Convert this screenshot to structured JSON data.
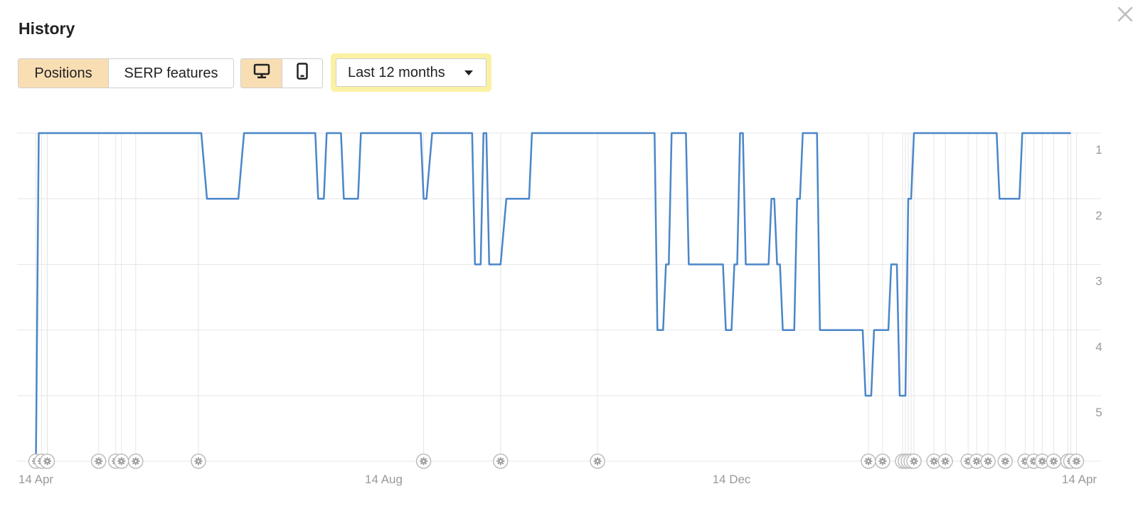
{
  "dialog": {
    "title": "History",
    "close_icon": "close-icon"
  },
  "tabs": [
    {
      "label": "Positions",
      "active": true
    },
    {
      "label": "SERP features",
      "active": false
    }
  ],
  "devices": [
    {
      "icon": "desktop-icon",
      "active": true
    },
    {
      "icon": "mobile-icon",
      "active": false
    }
  ],
  "period": {
    "label": "Last 12 months",
    "icon": "caret-down-icon"
  },
  "colors": {
    "accent": "#f9deb4",
    "highlight": "#fbf1a3",
    "line": "#4a86c8",
    "grid": "#e6e6e6",
    "muted": "#999999"
  },
  "chart_data": {
    "type": "line",
    "title": "",
    "x_axis": {
      "min": "2023-04-14",
      "max": "2024-04-21",
      "ticks": [
        "14 Apr",
        "14 Aug",
        "14 Dec",
        "14 Apr"
      ],
      "tick_dates": [
        "2023-04-14",
        "2023-08-14",
        "2023-12-14",
        "2024-04-14"
      ]
    },
    "y_axis": {
      "inverted": true,
      "ticks": [
        1,
        2,
        3,
        4,
        5
      ],
      "label": ""
    },
    "grid": true,
    "series": [
      {
        "points": [
          [
            "2023-04-14",
            null
          ],
          [
            "2023-04-15",
            1
          ],
          [
            "2023-06-11",
            1
          ],
          [
            "2023-06-13",
            2
          ],
          [
            "2023-06-24",
            2
          ],
          [
            "2023-06-26",
            1
          ],
          [
            "2023-07-21",
            1
          ],
          [
            "2023-07-22",
            2
          ],
          [
            "2023-07-24",
            2
          ],
          [
            "2023-07-25",
            1
          ],
          [
            "2023-07-30",
            1
          ],
          [
            "2023-07-31",
            2
          ],
          [
            "2023-08-05",
            2
          ],
          [
            "2023-08-06",
            1
          ],
          [
            "2023-08-27",
            1
          ],
          [
            "2023-08-28",
            2
          ],
          [
            "2023-08-29",
            2
          ],
          [
            "2023-08-31",
            1
          ],
          [
            "2023-09-14",
            1
          ],
          [
            "2023-09-15",
            3
          ],
          [
            "2023-09-17",
            3
          ],
          [
            "2023-09-18",
            1
          ],
          [
            "2023-09-19",
            1
          ],
          [
            "2023-09-20",
            3
          ],
          [
            "2023-09-24",
            3
          ],
          [
            "2023-09-26",
            2
          ],
          [
            "2023-10-04",
            2
          ],
          [
            "2023-10-05",
            1
          ],
          [
            "2023-11-17",
            1
          ],
          [
            "2023-11-18",
            4
          ],
          [
            "2023-11-20",
            4
          ],
          [
            "2023-11-21",
            3
          ],
          [
            "2023-11-22",
            3
          ],
          [
            "2023-11-23",
            1
          ],
          [
            "2023-11-28",
            1
          ],
          [
            "2023-11-29",
            3
          ],
          [
            "2023-12-11",
            3
          ],
          [
            "2023-12-12",
            4
          ],
          [
            "2023-12-14",
            4
          ],
          [
            "2023-12-15",
            3
          ],
          [
            "2023-12-16",
            3
          ],
          [
            "2023-12-17",
            1
          ],
          [
            "2023-12-18",
            1
          ],
          [
            "2023-12-19",
            3
          ],
          [
            "2023-12-27",
            3
          ],
          [
            "2023-12-28",
            2
          ],
          [
            "2023-12-29",
            2
          ],
          [
            "2023-12-30",
            3
          ],
          [
            "2023-12-31",
            3
          ],
          [
            "2024-01-01",
            4
          ],
          [
            "2024-01-05",
            4
          ],
          [
            "2024-01-06",
            2
          ],
          [
            "2024-01-07",
            2
          ],
          [
            "2024-01-08",
            1
          ],
          [
            "2024-01-13",
            1
          ],
          [
            "2024-01-14",
            4
          ],
          [
            "2024-01-29",
            4
          ],
          [
            "2024-01-30",
            5
          ],
          [
            "2024-02-01",
            5
          ],
          [
            "2024-02-02",
            4
          ],
          [
            "2024-02-07",
            4
          ],
          [
            "2024-02-08",
            3
          ],
          [
            "2024-02-10",
            3
          ],
          [
            "2024-02-11",
            5
          ],
          [
            "2024-02-13",
            5
          ],
          [
            "2024-02-14",
            2
          ],
          [
            "2024-02-15",
            2
          ],
          [
            "2024-02-16",
            1
          ],
          [
            "2024-03-16",
            1
          ],
          [
            "2024-03-17",
            2
          ],
          [
            "2024-03-24",
            2
          ],
          [
            "2024-03-25",
            1
          ],
          [
            "2024-04-11",
            1
          ]
        ]
      }
    ],
    "update_markers": [
      "2023-04-14",
      "2023-04-16",
      "2023-04-18",
      "2023-05-06",
      "2023-05-12",
      "2023-05-14",
      "2023-05-19",
      "2023-06-10",
      "2023-08-28",
      "2023-09-24",
      "2023-10-28",
      "2024-01-31",
      "2024-02-05",
      "2024-02-12",
      "2024-02-13",
      "2024-02-14",
      "2024-02-15",
      "2024-02-16",
      "2024-02-23",
      "2024-02-27",
      "2024-03-06",
      "2024-03-09",
      "2024-03-13",
      "2024-03-19",
      "2024-03-26",
      "2024-03-29",
      "2024-04-01",
      "2024-04-05",
      "2024-04-10",
      "2024-04-11",
      "2024-04-13"
    ]
  }
}
